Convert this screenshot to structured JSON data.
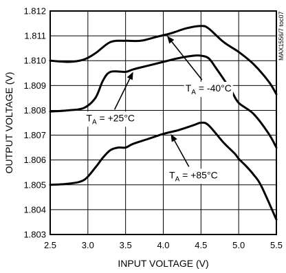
{
  "chart_data": {
    "type": "line",
    "xlabel": "INPUT VOLTAGE (V)",
    "ylabel": "OUTPUT VOLTAGE (V)",
    "xlim": [
      2.5,
      5.5
    ],
    "ylim": [
      1.803,
      1.812
    ],
    "x_ticks": [
      "2.5",
      "3.0",
      "3.5",
      "4.0",
      "4.5",
      "5.0",
      "5.5"
    ],
    "y_ticks": [
      "1.803",
      "1.804",
      "1.805",
      "1.806",
      "1.807",
      "1.808",
      "1.809",
      "1.810",
      "1.811",
      "1.812"
    ],
    "grid": true,
    "watermark": "MAX1556/7 toc07",
    "series": [
      {
        "name": "T_A = -40°C",
        "x": [
          2.5,
          2.75,
          2.95,
          3.1,
          3.3,
          3.5,
          3.7,
          3.9,
          4.1,
          4.3,
          4.5,
          4.6,
          4.8,
          5.0,
          5.2,
          5.4,
          5.5
        ],
        "y": [
          1.81,
          1.80995,
          1.81005,
          1.8103,
          1.81075,
          1.8108,
          1.8108,
          1.81095,
          1.8111,
          1.8113,
          1.8114,
          1.8113,
          1.81075,
          1.81035,
          1.80985,
          1.80915,
          1.80865
        ]
      },
      {
        "name": "T_A = +25°C",
        "x": [
          2.5,
          2.75,
          2.95,
          3.1,
          3.2,
          3.3,
          3.5,
          3.6,
          3.8,
          4.0,
          4.2,
          4.4,
          4.5,
          4.6,
          4.7,
          4.9,
          5.0,
          5.2,
          5.4,
          5.5
        ],
        "y": [
          1.80795,
          1.808,
          1.8081,
          1.8085,
          1.8092,
          1.80955,
          1.80955,
          1.80965,
          1.8098,
          1.80995,
          1.8101,
          1.8102,
          1.8102,
          1.8101,
          1.8097,
          1.8088,
          1.8083,
          1.80785,
          1.80705,
          1.8065
        ]
      },
      {
        "name": "T_A = +85°C",
        "x": [
          2.5,
          2.75,
          2.95,
          3.1,
          3.2,
          3.3,
          3.4,
          3.5,
          3.6,
          3.8,
          4.0,
          4.2,
          4.4,
          4.5,
          4.6,
          4.8,
          4.95,
          5.0,
          5.1,
          5.2,
          5.3,
          5.5
        ],
        "y": [
          1.805,
          1.80505,
          1.8052,
          1.8057,
          1.8061,
          1.8064,
          1.8065,
          1.8065,
          1.80665,
          1.80685,
          1.80705,
          1.8072,
          1.8074,
          1.8075,
          1.8074,
          1.8067,
          1.80625,
          1.80605,
          1.80575,
          1.8054,
          1.80495,
          1.8036
        ]
      }
    ],
    "annotations": [
      {
        "text_main": "T",
        "text_sub": "A",
        "text_rest": " = -40°C",
        "target": [
          4.05,
          1.811
        ],
        "label_at": [
          4.6,
          1.8089
        ]
      },
      {
        "text_main": "T",
        "text_sub": "A",
        "text_rest": " = +25°C",
        "target": [
          3.6,
          1.80955
        ],
        "label_at": [
          3.3,
          1.8077
        ]
      },
      {
        "text_main": "T",
        "text_sub": "A",
        "text_rest": " = +85°C",
        "target": [
          4.1,
          1.80705
        ],
        "label_at": [
          4.4,
          1.8054
        ]
      }
    ]
  }
}
